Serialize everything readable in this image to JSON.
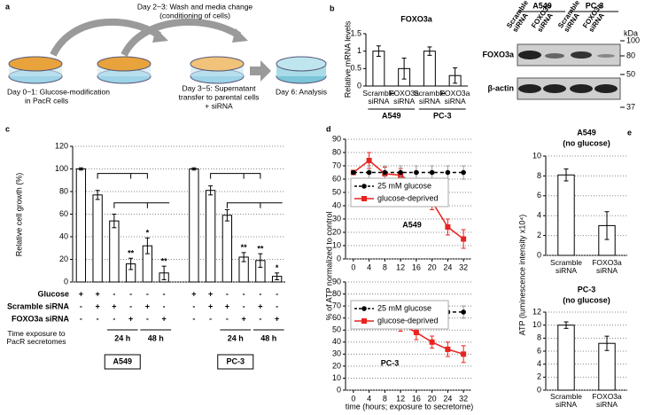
{
  "panel_labels": [
    "a",
    "b",
    "c",
    "d",
    "e"
  ],
  "diagram": {
    "top_step": [
      "Day 2~3: Wash and media change",
      "(conditioning of cells)"
    ],
    "steps": [
      [
        "Day 0~1: Glucose-modification",
        "in PacR cells"
      ],
      [
        "Day 3~5: Supernatant",
        "transfer to parental cells",
        "+ siRNA"
      ],
      [
        "Day 6: Analysis"
      ]
    ]
  },
  "blot": {
    "groups": [
      "A549",
      "PC-3"
    ],
    "lanes": [
      "Scramble siRNA",
      "FOXO3a siRNA",
      "Scramble siRNA",
      "FOXO3a siRNA"
    ],
    "rows": [
      "FOXO3a",
      "β-actin"
    ],
    "unit": "kDa",
    "markers": [
      100,
      80,
      50,
      37
    ]
  },
  "chart_data": [
    {
      "type": "bar",
      "title": "FOXO3a",
      "ylabel": "Relative mRNA levels",
      "categories": [
        "Scramble siRNA",
        "FOXO3a siRNA",
        "Scramble siRNA",
        "FOXO3a siRNA"
      ],
      "values": [
        1,
        0.5,
        1,
        0.3
      ],
      "errors": [
        0.15,
        0.3,
        0.12,
        0.22
      ],
      "groups": [
        "A549",
        "PC-3"
      ],
      "color": "#ffffff",
      "ylim": [
        0,
        1.5
      ],
      "yticks": [
        0,
        0.5,
        1,
        1.5
      ],
      "grid": false
    },
    {
      "type": "bar",
      "ylabel": "Relative cell growth (%)",
      "values": [
        100,
        77,
        54,
        16,
        32,
        8,
        100,
        81,
        59,
        22,
        19,
        5
      ],
      "errors": [
        1,
        4,
        6,
        5,
        7,
        6,
        1,
        4,
        5,
        4,
        6,
        3
      ],
      "significance": [
        null,
        null,
        null,
        "**",
        "*",
        "**",
        null,
        null,
        null,
        "**",
        "**",
        "*"
      ],
      "groups": [
        "A549",
        "PC-3"
      ],
      "color": "#ffffff",
      "table": {
        "rows": [
          {
            "label": "Glucose",
            "cells": [
              "+",
              "+",
              "-",
              "-",
              "-",
              "-",
              "+",
              "+",
              "-",
              "-",
              "-",
              "-"
            ]
          },
          {
            "label": "Scramble siRNA",
            "cells": [
              "-",
              "+",
              "+",
              "-",
              "+",
              "-",
              "-",
              "+",
              "+",
              "-",
              "+",
              "-"
            ]
          },
          {
            "label": "FOXO3a siRNA",
            "cells": [
              "-",
              "-",
              "-",
              "+",
              "-",
              "+",
              "-",
              "-",
              "-",
              "+",
              "-",
              "+"
            ]
          }
        ],
        "time_label": "Time exposure to PacR secretomes",
        "time_groups": [
          [
            "24 h",
            "48 h"
          ],
          [
            "24 h",
            "48 h"
          ]
        ]
      },
      "ylim": [
        0,
        120
      ],
      "yticks": [
        0,
        20,
        40,
        60,
        80,
        100,
        120
      ],
      "grid": true
    },
    {
      "type": "line",
      "title": "A549",
      "ylabel": "% of ATP normalized to control",
      "categories": [
        0,
        4,
        8,
        12,
        16,
        20,
        24,
        32
      ],
      "series": [
        {
          "name": "25 mM glucose",
          "color": "#000000",
          "line_style": "dashed",
          "marker": "circle",
          "values": [
            65,
            65,
            65,
            65,
            65,
            65,
            65,
            65
          ],
          "errors": [
            0,
            5,
            5,
            5,
            5,
            5,
            5,
            5
          ]
        },
        {
          "name": "glucose-deprived",
          "color": "#e8231f",
          "line_style": "solid",
          "marker": "square",
          "values": [
            65,
            74,
            64,
            63,
            55,
            43,
            24,
            15
          ],
          "errors": [
            0,
            6,
            5,
            5,
            5,
            6,
            6,
            7
          ]
        }
      ],
      "ylim": [
        0,
        90
      ],
      "yticks": [
        0,
        10,
        20,
        30,
        40,
        50,
        60,
        70,
        80,
        90
      ],
      "grid": true
    },
    {
      "type": "line",
      "title": "PC-3",
      "xlabel": "time (hours; exposure to secretome)",
      "categories": [
        0,
        4,
        8,
        12,
        16,
        20,
        24,
        32
      ],
      "series": [
        {
          "name": "25 mM glucose",
          "color": "#000000",
          "line_style": "dashed",
          "marker": "circle",
          "values": [
            65,
            65,
            65,
            65,
            65,
            65,
            65,
            65
          ],
          "errors": [
            0,
            5,
            5,
            5,
            5,
            5,
            5,
            5
          ]
        },
        {
          "name": "glucose-deprived",
          "color": "#e8231f",
          "line_style": "solid",
          "marker": "square",
          "values": [
            65,
            68,
            58,
            55,
            48,
            40,
            34,
            30
          ],
          "errors": [
            0,
            5,
            6,
            6,
            6,
            5,
            6,
            7
          ]
        }
      ],
      "ylim": [
        0,
        90
      ],
      "yticks": [
        0,
        10,
        20,
        30,
        40,
        50,
        60,
        70,
        80,
        90
      ],
      "grid": true
    },
    {
      "type": "bar",
      "title": "A549",
      "subtitle": "(no glucose)",
      "ylabel": "ATP (luminescence intensity x10⁴)",
      "categories": [
        "Scramble siRNA",
        "FOXO3a siRNA"
      ],
      "values": [
        8.1,
        3
      ],
      "errors": [
        0.6,
        1.4
      ],
      "color": "#ffffff",
      "ylim": [
        0,
        10
      ],
      "yticks": [
        0,
        2,
        4,
        6,
        8,
        10
      ],
      "grid": true
    },
    {
      "type": "bar",
      "title": "PC-3",
      "subtitle": "(no glucose)",
      "categories": [
        "Scramble siRNA",
        "FOXO3a siRNA"
      ],
      "values": [
        10,
        7.2
      ],
      "errors": [
        0.5,
        1.1
      ],
      "color": "#ffffff",
      "ylim": [
        0,
        12
      ],
      "yticks": [
        0,
        2,
        4,
        6,
        8,
        10,
        12
      ],
      "grid": true
    }
  ]
}
